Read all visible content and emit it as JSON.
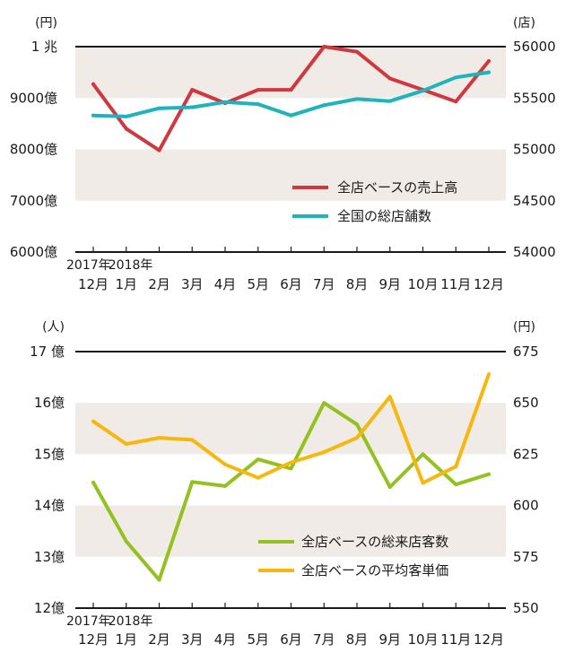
{
  "chart_data": [
    {
      "type": "line",
      "left_unit": "(円)",
      "right_unit": "(店)",
      "left_ticks": [
        "1 兆",
        "9000億",
        "8000億",
        "7000億",
        "6000億"
      ],
      "left_tick_values": [
        10000,
        9000,
        8000,
        7000,
        6000
      ],
      "right_ticks": [
        "56000",
        "55500",
        "55000",
        "54500",
        "54000"
      ],
      "right_tick_values": [
        56000,
        55500,
        55000,
        54500,
        54000
      ],
      "ylim_left": [
        6000,
        10000
      ],
      "ylim_right": [
        54000,
        56000
      ],
      "bands_left": [
        [
          9000,
          10000
        ],
        [
          7000,
          8000
        ]
      ],
      "year_labels": [
        "2017年",
        "2018年"
      ],
      "categories": [
        "12月",
        "1月",
        "2月",
        "3月",
        "4月",
        "5月",
        "6月",
        "7月",
        "8月",
        "9月",
        "10月",
        "11月",
        "12月"
      ],
      "series": [
        {
          "name": "全店ベースの売上高",
          "axis": "left",
          "color": "#d0383f",
          "values": [
            9270,
            8400,
            7980,
            9160,
            8900,
            9160,
            9160,
            10000,
            9900,
            9380,
            9160,
            8930,
            9720
          ]
        },
        {
          "name": "全国の総店舗数",
          "axis": "right",
          "color": "#1fb3bb",
          "values": [
            55330,
            55320,
            55400,
            55410,
            55460,
            55440,
            55330,
            55430,
            55490,
            55470,
            55570,
            55700,
            55750
          ]
        }
      ]
    },
    {
      "type": "line",
      "left_unit": "(人)",
      "right_unit": "(円)",
      "left_ticks": [
        "17 億",
        "16億",
        "15億",
        "14億",
        "13億",
        "12億"
      ],
      "left_tick_values": [
        17,
        16,
        15,
        14,
        13,
        12
      ],
      "right_ticks": [
        "675",
        "650",
        "625",
        "600",
        "575",
        "550"
      ],
      "right_tick_values": [
        675,
        650,
        625,
        600,
        575,
        550
      ],
      "ylim_left": [
        12,
        17
      ],
      "ylim_right": [
        550,
        675
      ],
      "bands_left": [
        [
          15,
          16
        ],
        [
          13,
          14
        ]
      ],
      "year_labels": [
        "2017年",
        "2018年"
      ],
      "categories": [
        "12月",
        "1月",
        "2月",
        "3月",
        "4月",
        "5月",
        "6月",
        "7月",
        "8月",
        "9月",
        "10月",
        "11月",
        "12月"
      ],
      "series": [
        {
          "name": "全店ベースの総来店客数",
          "axis": "left",
          "color": "#93c11f",
          "values": [
            14.45,
            13.3,
            12.55,
            14.46,
            14.38,
            14.9,
            14.72,
            16.0,
            15.58,
            14.36,
            15.0,
            14.41,
            14.61
          ]
        },
        {
          "name": "全店ベースの平均客単価",
          "axis": "right",
          "color": "#f6b80e",
          "values": [
            641,
            630,
            633,
            632,
            620,
            613.5,
            621,
            626,
            633,
            653,
            611,
            619,
            664
          ]
        }
      ]
    }
  ]
}
